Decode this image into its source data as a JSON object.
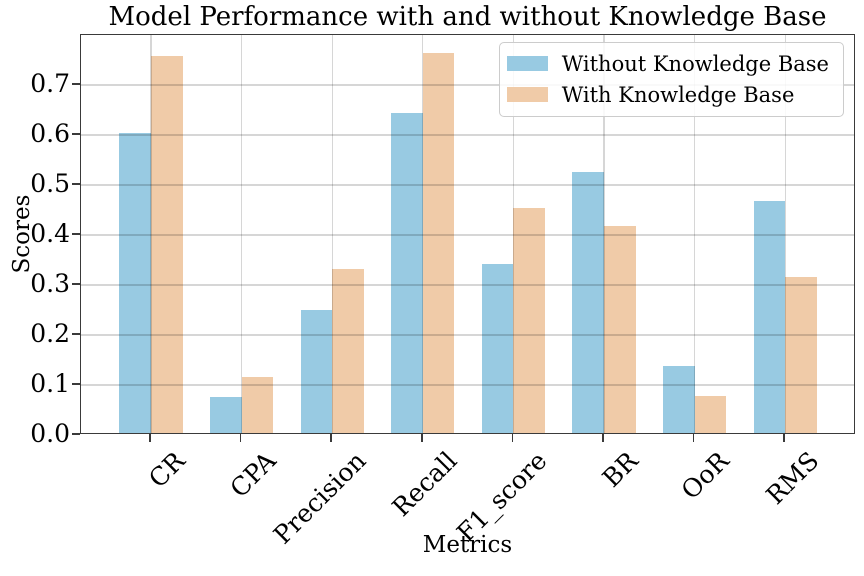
{
  "chart_data": {
    "type": "bar",
    "title": "Model Performance with and without Knowledge Base",
    "xlabel": "Metrics",
    "ylabel": "Scores",
    "categories": [
      "CR",
      "CPA",
      "Precision",
      "Recall",
      "F1_score",
      "BR",
      "OoR",
      "RMS"
    ],
    "series": [
      {
        "name": "Without Knowledge Base",
        "color": "#98CAE2",
        "values": [
          0.6,
          0.072,
          0.247,
          0.64,
          0.338,
          0.522,
          0.134,
          0.464
        ]
      },
      {
        "name": "With Knowledge Base",
        "color": "#F0CBA8",
        "values": [
          0.755,
          0.112,
          0.328,
          0.76,
          0.45,
          0.414,
          0.074,
          0.312
        ]
      }
    ],
    "ylim": [
      0,
      0.8
    ],
    "yticks": [
      "0.0",
      "0.1",
      "0.2",
      "0.3",
      "0.4",
      "0.5",
      "0.6",
      "0.7"
    ],
    "grid": true,
    "grid_color": "#d8d8d8",
    "spine_color": "#3a3a3a",
    "text_color": "#000000",
    "legend_position": "upper right"
  }
}
